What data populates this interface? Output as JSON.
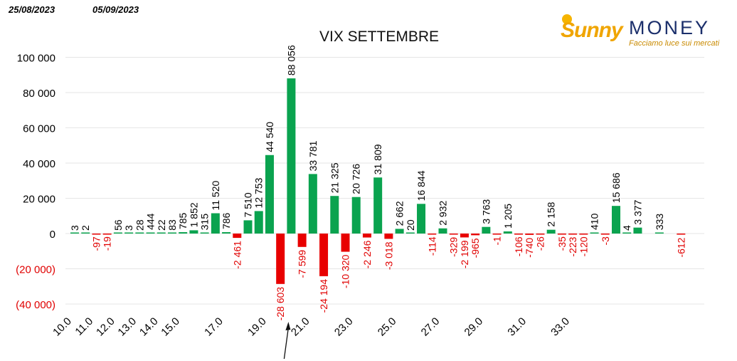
{
  "header": {
    "date_start": "25/08/2023",
    "date_end": "05/09/2023"
  },
  "logo": {
    "sunny": "Sunny",
    "money": "MONEY",
    "tagline": "Facciamo luce sui mercati"
  },
  "chart_data": {
    "type": "bar",
    "title": "VIX SETTEMBRE",
    "xlabel": "",
    "ylabel": "",
    "ylim": [
      -40000,
      100000
    ],
    "y_ticks": [
      {
        "value": 100000,
        "label": "100 000"
      },
      {
        "value": 80000,
        "label": "80 000"
      },
      {
        "value": 60000,
        "label": "60 000"
      },
      {
        "value": 40000,
        "label": "40 000"
      },
      {
        "value": 20000,
        "label": "20 000"
      },
      {
        "value": 0,
        "label": "0"
      },
      {
        "value": -20000,
        "label": "(20 000)"
      },
      {
        "value": -40000,
        "label": "(40 000)"
      }
    ],
    "x_ticks": [
      {
        "strike": 10.0,
        "label": "10.0"
      },
      {
        "strike": 11.0,
        "label": "11.0"
      },
      {
        "strike": 12.0,
        "label": "12.0"
      },
      {
        "strike": 13.0,
        "label": "13.0"
      },
      {
        "strike": 14.0,
        "label": "14.0"
      },
      {
        "strike": 15.0,
        "label": "15.0"
      },
      {
        "strike": 17.0,
        "label": "17.0"
      },
      {
        "strike": 19.0,
        "label": "19.0"
      },
      {
        "strike": 21.0,
        "label": "21.0"
      },
      {
        "strike": 23.0,
        "label": "23.0"
      },
      {
        "strike": 25.0,
        "label": "25.0"
      },
      {
        "strike": 27.0,
        "label": "27.0"
      },
      {
        "strike": 29.0,
        "label": "29.0"
      },
      {
        "strike": 31.0,
        "label": "31.0"
      },
      {
        "strike": 33.0,
        "label": "33.0"
      }
    ],
    "grid": true,
    "legend": "none",
    "colors": {
      "positive": "#0aa34f",
      "negative": "#e80000",
      "label_positive": "#000000",
      "label_negative": "#e00000",
      "tick": "#000000",
      "grid": "#e6e6e6"
    },
    "bars": [
      {
        "strike": 10.0,
        "value": 3,
        "label": "3"
      },
      {
        "strike": 10.5,
        "value": 2,
        "label": "2"
      },
      {
        "strike": 11.0,
        "value": -97,
        "label": "-97"
      },
      {
        "strike": 11.5,
        "value": -19,
        "label": "-19"
      },
      {
        "strike": 12.0,
        "value": 56,
        "label": "56"
      },
      {
        "strike": 12.5,
        "value": 3,
        "label": "3"
      },
      {
        "strike": 13.0,
        "value": 28,
        "label": "28"
      },
      {
        "strike": 13.5,
        "value": 444,
        "label": "444"
      },
      {
        "strike": 14.0,
        "value": 22,
        "label": "22"
      },
      {
        "strike": 14.5,
        "value": 83,
        "label": "83"
      },
      {
        "strike": 15.0,
        "value": 785,
        "label": "785"
      },
      {
        "strike": 15.5,
        "value": 1852,
        "label": "1 852"
      },
      {
        "strike": 16.0,
        "value": 315,
        "label": "315"
      },
      {
        "strike": 16.5,
        "value": 11520,
        "label": "11 520"
      },
      {
        "strike": 17.0,
        "value": 786,
        "label": "786"
      },
      {
        "strike": 17.5,
        "value": -2461,
        "label": "-2 461"
      },
      {
        "strike": 18.0,
        "value": 7510,
        "label": "7 510"
      },
      {
        "strike": 18.5,
        "value": 12753,
        "label": "12 753"
      },
      {
        "strike": 19.0,
        "value": 44540,
        "label": "44 540"
      },
      {
        "strike": 19.5,
        "value": -28603,
        "label": "-28 603"
      },
      {
        "strike": 20.0,
        "value": 88056,
        "label": "88 056"
      },
      {
        "strike": 20.5,
        "value": -7599,
        "label": "-7 599"
      },
      {
        "strike": 21.0,
        "value": 33781,
        "label": "33 781"
      },
      {
        "strike": 21.5,
        "value": -24194,
        "label": "-24 194"
      },
      {
        "strike": 22.0,
        "value": 21325,
        "label": "21 325"
      },
      {
        "strike": 22.5,
        "value": -10320,
        "label": "-10 320"
      },
      {
        "strike": 23.0,
        "value": 20726,
        "label": "20 726"
      },
      {
        "strike": 23.5,
        "value": -2246,
        "label": "-2 246"
      },
      {
        "strike": 24.0,
        "value": 31809,
        "label": "31 809"
      },
      {
        "strike": 24.5,
        "value": -3018,
        "label": "-3 018"
      },
      {
        "strike": 25.0,
        "value": 2662,
        "label": "2 662"
      },
      {
        "strike": 25.5,
        "value": 20,
        "label": "20"
      },
      {
        "strike": 26.0,
        "value": 16844,
        "label": "16 844"
      },
      {
        "strike": 26.5,
        "value": -114,
        "label": "-114"
      },
      {
        "strike": 27.0,
        "value": 2932,
        "label": "2 932"
      },
      {
        "strike": 27.5,
        "value": -329,
        "label": "-329"
      },
      {
        "strike": 28.0,
        "value": -2199,
        "label": "-2 199"
      },
      {
        "strike": 28.5,
        "value": -965,
        "label": "-965"
      },
      {
        "strike": 29.0,
        "value": 3763,
        "label": "3 763"
      },
      {
        "strike": 29.5,
        "value": -1,
        "label": "-1"
      },
      {
        "strike": 30.0,
        "value": 1205,
        "label": "1 205"
      },
      {
        "strike": 30.5,
        "value": -106,
        "label": "-106"
      },
      {
        "strike": 31.0,
        "value": -740,
        "label": "-740"
      },
      {
        "strike": 31.5,
        "value": -26,
        "label": "-26"
      },
      {
        "strike": 32.0,
        "value": 2158,
        "label": "2 158"
      },
      {
        "strike": 32.5,
        "value": -35,
        "label": "-35"
      },
      {
        "strike": 33.0,
        "value": -223,
        "label": "-223"
      },
      {
        "strike": 33.5,
        "value": -120,
        "label": "-120"
      },
      {
        "strike": 34.0,
        "value": 410,
        "label": "410"
      },
      {
        "strike": 34.5,
        "value": -3,
        "label": "-3"
      },
      {
        "strike": 35.0,
        "value": 15686,
        "label": "15 686"
      },
      {
        "strike": 35.5,
        "value": 4,
        "label": "4"
      },
      {
        "strike": 36.0,
        "value": 3377,
        "label": "3 377"
      },
      {
        "strike": 37.0,
        "value": 333,
        "label": "333"
      },
      {
        "strike": 38.0,
        "value": -612,
        "label": "-612"
      }
    ],
    "annotations": [
      {
        "type": "arrow",
        "points_to_strike": 20.0,
        "direction": "up",
        "label": ""
      }
    ]
  }
}
